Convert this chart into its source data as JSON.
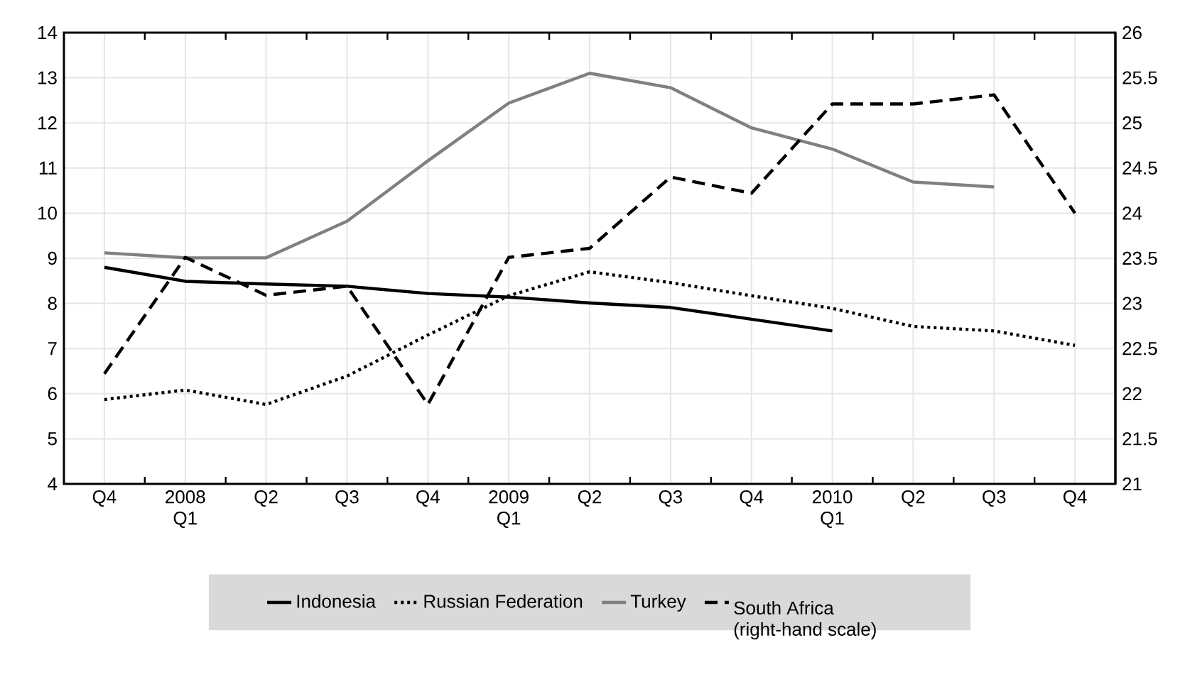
{
  "chart_data": {
    "type": "line",
    "categories": [
      "Q4",
      "2008 Q1",
      "Q2",
      "Q3",
      "Q4",
      "2009 Q1",
      "Q2",
      "Q3",
      "Q4",
      "2010 Q1",
      "Q2",
      "Q3",
      "Q4"
    ],
    "series": [
      {
        "name": "Indonesia",
        "color": "#000000",
        "line_style": "solid",
        "values": [
          8.8,
          8.49,
          8.43,
          8.38,
          8.22,
          8.14,
          8.01,
          7.91,
          7.65,
          7.39,
          null,
          null,
          null
        ]
      },
      {
        "name": "Russian Federation",
        "color": "#000000",
        "line_style": "dotted",
        "values": [
          5.87,
          6.08,
          5.76,
          6.39,
          7.3,
          8.17,
          8.7,
          8.46,
          8.17,
          7.89,
          7.49,
          7.39,
          7.07
        ]
      },
      {
        "name": "Turkey",
        "color": "#808080",
        "line_style": "solid",
        "values": [
          9.12,
          9.01,
          9.01,
          9.82,
          11.16,
          12.44,
          13.1,
          12.78,
          11.89,
          11.42,
          10.69,
          10.58,
          null
        ]
      },
      {
        "name": "South Africa (right-hand scale)",
        "color": "#000000",
        "line_style": "dashed",
        "axis": "y2",
        "values": [
          22.22,
          23.51,
          23.09,
          23.19,
          21.88,
          23.51,
          23.61,
          24.4,
          24.22,
          25.21,
          25.21,
          25.31,
          24.0
        ]
      }
    ],
    "ylim": [
      4,
      14
    ],
    "yticks": [
      4,
      5,
      6,
      7,
      8,
      9,
      10,
      11,
      12,
      13,
      14
    ],
    "y2lim": [
      21,
      26
    ],
    "y2ticks": [
      21,
      21.5,
      22,
      22.5,
      23,
      23.5,
      24,
      24.5,
      25,
      25.5,
      26
    ],
    "grid": true,
    "legend": "bottom",
    "marker": "none"
  }
}
